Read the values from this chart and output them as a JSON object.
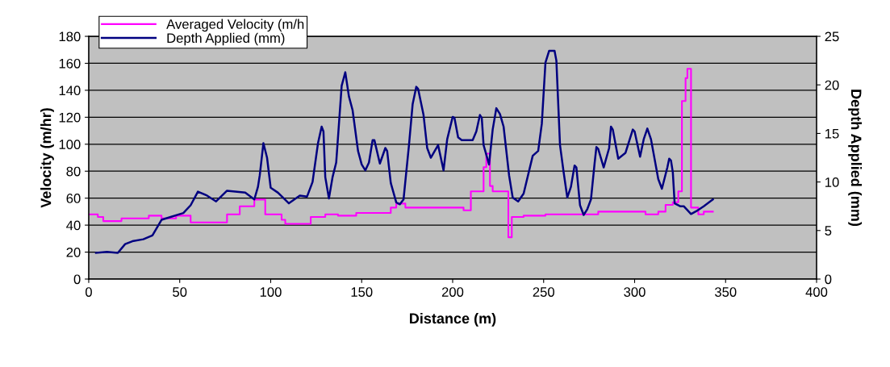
{
  "chart_data": {
    "type": "line",
    "xlabel": "Distance (m)",
    "ylabel": "Velocity (m/hr)",
    "y2label": "Depth Applied (mm)",
    "xlim": [
      0,
      400
    ],
    "xticks": [
      0,
      50,
      100,
      150,
      200,
      250,
      300,
      350,
      400
    ],
    "ylim": [
      0,
      180
    ],
    "yticks": [
      0,
      20,
      40,
      60,
      80,
      100,
      120,
      140,
      160,
      180
    ],
    "y2lim": [
      0,
      25
    ],
    "y2ticks": [
      0,
      5,
      10,
      15,
      20,
      25
    ],
    "grid": "y",
    "legend": "top left",
    "series": [
      {
        "name": "Averaged Velocity (m/h",
        "type": "step",
        "color": "#ff00ff",
        "x": [
          0,
          5,
          8,
          18,
          33,
          40,
          48,
          56,
          76,
          83,
          91,
          97,
          106,
          108,
          122,
          130,
          137,
          143,
          147,
          166,
          169,
          174,
          190,
          206,
          210,
          217,
          218.5,
          220.5,
          222,
          230.6,
          232.5,
          239,
          251,
          280,
          306,
          313,
          317,
          321,
          324,
          326,
          328,
          329,
          331,
          335,
          338,
          343
        ],
        "values": [
          48,
          46,
          43,
          45,
          47,
          45,
          47,
          42,
          48,
          54,
          59,
          48,
          44,
          41,
          46,
          48,
          47,
          47,
          49,
          53,
          56,
          53,
          53,
          51,
          65,
          83,
          93,
          69,
          65,
          31,
          46,
          47,
          48,
          50,
          48,
          50,
          55,
          57,
          65,
          132,
          149,
          156,
          53,
          48,
          50,
          50
        ]
      },
      {
        "name": "Depth Applied (mm)",
        "axis": "y2",
        "color": "#000080",
        "x": [
          4,
          10,
          16,
          20,
          24,
          30,
          35,
          40,
          45,
          52,
          56,
          60,
          65,
          70,
          76,
          86,
          91,
          93,
          94,
          96,
          98,
          100,
          104,
          110,
          116,
          120,
          123,
          126,
          128,
          129,
          130,
          132,
          134,
          136,
          139,
          141,
          143,
          145,
          148,
          150,
          152,
          154,
          156,
          157,
          160,
          163,
          164,
          166,
          169,
          171,
          173,
          176,
          178,
          180,
          181,
          184,
          186,
          188,
          192,
          195,
          197,
          200,
          201,
          203,
          205,
          211,
          213,
          215,
          216,
          217,
          220,
          222,
          224,
          226,
          228,
          231,
          233,
          236,
          239,
          244,
          247,
          249,
          251,
          253,
          256,
          257,
          259,
          261,
          263,
          265,
          267,
          268,
          270,
          272,
          274,
          276,
          278,
          279,
          280,
          283,
          286,
          287,
          288,
          291,
          295,
          299,
          300,
          303,
          305,
          307,
          309,
          313,
          315,
          318,
          319,
          320,
          321,
          322,
          325,
          327,
          331,
          334,
          338,
          343
        ],
        "values": [
          2.7,
          2.8,
          2.7,
          3.6,
          3.9,
          4.1,
          4.5,
          6.1,
          6.4,
          6.8,
          7.6,
          9.0,
          8.6,
          8.0,
          9.1,
          8.9,
          8.2,
          9.5,
          10.7,
          14.0,
          12.5,
          9.4,
          8.9,
          7.8,
          8.6,
          8.5,
          10.0,
          14.0,
          15.7,
          15.2,
          10.5,
          8.3,
          10.5,
          12.0,
          19.9,
          21.3,
          18.8,
          17.4,
          13.2,
          11.8,
          11.2,
          12.0,
          14.3,
          14.3,
          11.9,
          13.5,
          13.2,
          9.9,
          7.9,
          7.7,
          8.2,
          13.8,
          18.0,
          19.8,
          19.6,
          16.9,
          13.5,
          12.5,
          13.8,
          11.2,
          14.4,
          16.7,
          16.6,
          14.6,
          14.3,
          14.3,
          15.2,
          16.9,
          16.6,
          13.8,
          11.8,
          15.4,
          17.6,
          17.0,
          15.7,
          10.7,
          8.4,
          8.0,
          8.8,
          12.7,
          13.2,
          16.0,
          22.3,
          23.5,
          23.5,
          22.5,
          13.8,
          11.0,
          8.4,
          9.5,
          11.7,
          11.5,
          7.6,
          6.6,
          7.2,
          8.2,
          11.9,
          13.6,
          13.4,
          11.5,
          13.5,
          15.7,
          15.4,
          12.4,
          13.0,
          15.4,
          15.2,
          12.6,
          14.4,
          15.5,
          14.4,
          10.3,
          9.3,
          11.5,
          12.4,
          12.2,
          11.0,
          7.8,
          7.5,
          7.5,
          6.7,
          7.0,
          7.5,
          8.2
        ]
      }
    ]
  }
}
